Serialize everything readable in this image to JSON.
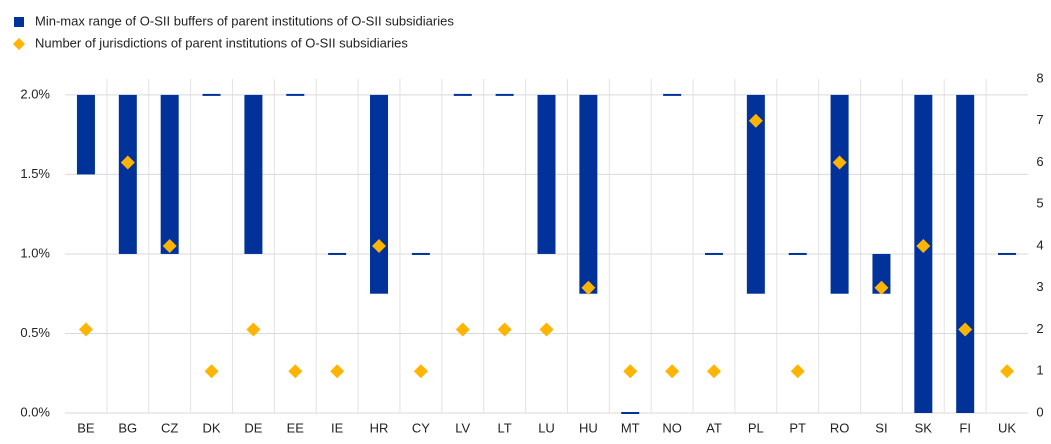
{
  "chart_data": {
    "type": "range-bar-diamond",
    "categories": [
      "BE",
      "BG",
      "CZ",
      "DK",
      "DE",
      "EE",
      "IE",
      "HR",
      "CY",
      "LV",
      "LT",
      "LU",
      "HU",
      "MT",
      "NO",
      "AT",
      "PL",
      "PT",
      "RO",
      "SI",
      "SK",
      "FI",
      "UK"
    ],
    "series": [
      {
        "name": "Min-max range of O-SII buffers of parent institutions of O-SII subsidiaries",
        "color": "#003299",
        "type": "range",
        "low": [
          1.5,
          1.0,
          1.0,
          2.0,
          1.0,
          2.0,
          1.0,
          0.75,
          1.0,
          2.0,
          2.0,
          1.0,
          0.75,
          0,
          2.0,
          1.0,
          0.75,
          1.0,
          0.75,
          0.75,
          0,
          0,
          1.0
        ],
        "high": [
          2.0,
          2.0,
          2.0,
          2.0,
          2.0,
          2.0,
          1.0,
          2.0,
          1.0,
          2.0,
          2.0,
          2.0,
          2.0,
          0,
          2.0,
          1.0,
          2.0,
          1.0,
          2.0,
          1.0,
          2.0,
          2.0,
          1.0
        ]
      },
      {
        "name": "Number of jurisdictions of parent institutions of O-SII subsidiaries",
        "color": "#ffb400",
        "type": "diamond",
        "axis": "y2",
        "values": [
          2,
          6,
          4,
          1,
          2,
          1,
          1,
          4,
          1,
          2,
          2,
          2,
          3,
          1,
          1,
          1,
          7,
          1,
          6,
          3,
          4,
          2,
          1
        ]
      }
    ],
    "ylim": [
      0,
      2.1
    ],
    "yticks": [
      {
        "value": 0,
        "label": "0.0%"
      },
      {
        "value": 0.5,
        "label": "0.5%"
      },
      {
        "value": 1,
        "label": "1.0%"
      },
      {
        "value": 1.5,
        "label": "1.5%"
      },
      {
        "value": 2,
        "label": "2.0%"
      }
    ],
    "y2lim": [
      0,
      8
    ],
    "y2ticks": [
      0,
      1,
      2,
      3,
      4,
      5,
      6,
      7,
      8
    ],
    "grid": true
  }
}
